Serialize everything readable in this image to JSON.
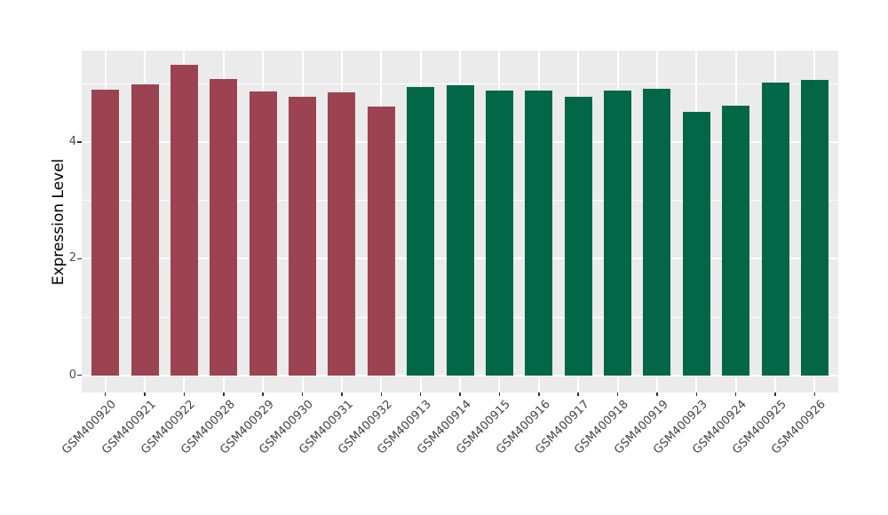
{
  "chart_data": {
    "type": "bar",
    "title": "",
    "xlabel": "",
    "ylabel": "Expression Level",
    "ylim": [
      0,
      5.32
    ],
    "yticks": [
      0,
      2,
      4
    ],
    "yminor_gridlines": [
      1,
      3,
      5
    ],
    "legend": "none",
    "panel_bg": "#EBEBEB",
    "grid_color": "#FFFFFF",
    "group_colors": {
      "maroon": "#9C4351",
      "green": "#016747"
    },
    "bars": [
      {
        "label": "GSM400920",
        "value": 4.9,
        "group": "maroon"
      },
      {
        "label": "GSM400921",
        "value": 4.99,
        "group": "maroon"
      },
      {
        "label": "GSM400922",
        "value": 5.32,
        "group": "maroon"
      },
      {
        "label": "GSM400928",
        "value": 5.08,
        "group": "maroon"
      },
      {
        "label": "GSM400929",
        "value": 4.87,
        "group": "maroon"
      },
      {
        "label": "GSM400930",
        "value": 4.77,
        "group": "maroon"
      },
      {
        "label": "GSM400931",
        "value": 4.86,
        "group": "maroon"
      },
      {
        "label": "GSM400932",
        "value": 4.61,
        "group": "maroon"
      },
      {
        "label": "GSM400913",
        "value": 4.94,
        "group": "green"
      },
      {
        "label": "GSM400914",
        "value": 4.97,
        "group": "green"
      },
      {
        "label": "GSM400915",
        "value": 4.88,
        "group": "green"
      },
      {
        "label": "GSM400916",
        "value": 4.88,
        "group": "green"
      },
      {
        "label": "GSM400917",
        "value": 4.77,
        "group": "green"
      },
      {
        "label": "GSM400918",
        "value": 4.88,
        "group": "green"
      },
      {
        "label": "GSM400919",
        "value": 4.92,
        "group": "green"
      },
      {
        "label": "GSM400923",
        "value": 4.52,
        "group": "green"
      },
      {
        "label": "GSM400924",
        "value": 4.63,
        "group": "green"
      },
      {
        "label": "GSM400925",
        "value": 5.02,
        "group": "green"
      },
      {
        "label": "GSM400926",
        "value": 5.06,
        "group": "green"
      }
    ]
  }
}
